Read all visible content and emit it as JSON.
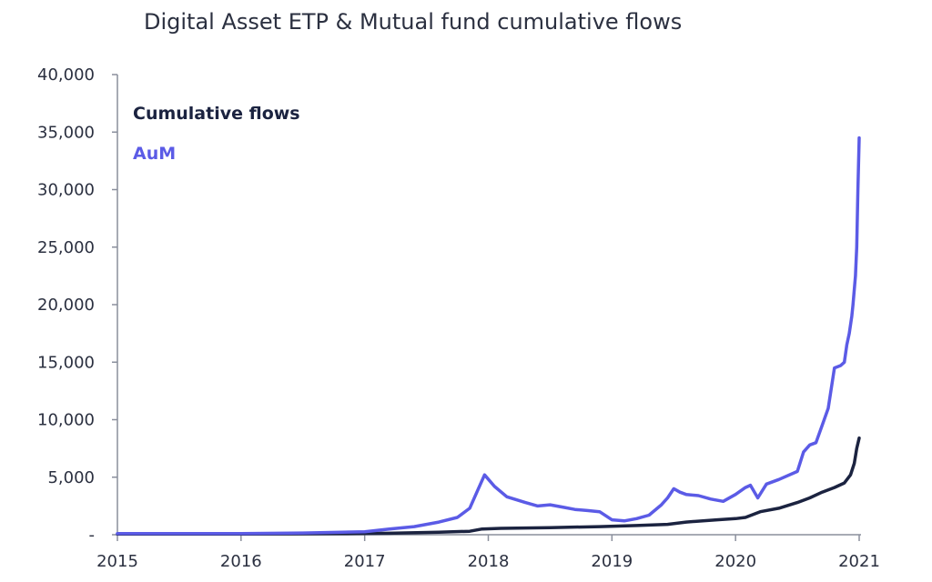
{
  "chart_data": {
    "type": "line",
    "title": "Digital Asset ETP & Mutual fund cumulative flows",
    "xlabel": "",
    "ylabel": "",
    "xlim": [
      2015,
      2021
    ],
    "ylim": [
      0,
      40000
    ],
    "x_ticks": [
      2015,
      2016,
      2017,
      2018,
      2019,
      2020,
      2021
    ],
    "x_tick_labels": [
      "2015",
      "2016",
      "2017",
      "2018",
      "2019",
      "2020",
      "2021"
    ],
    "y_ticks": [
      0,
      5000,
      10000,
      15000,
      20000,
      25000,
      30000,
      35000,
      40000
    ],
    "y_tick_labels": [
      "-",
      "5,000",
      "10,000",
      "15,000",
      "20,000",
      "25,000",
      "30,000",
      "35,000",
      "40,000"
    ],
    "grid": false,
    "legend_position": "top-left",
    "colors": {
      "cumulative_flows": "#1b2340",
      "aum": "#5b5be6",
      "axis": "#8a8f9c",
      "text": "#2b3040"
    },
    "series": [
      {
        "name": "Cumulative flows",
        "x": [
          2015.0,
          2016.0,
          2016.8,
          2017.2,
          2017.6,
          2017.85,
          2017.95,
          2018.1,
          2018.5,
          2018.9,
          2019.2,
          2019.45,
          2019.6,
          2019.85,
          2020.0,
          2020.08,
          2020.2,
          2020.35,
          2020.5,
          2020.6,
          2020.7,
          2020.8,
          2020.88,
          2020.93,
          2020.96,
          2020.98,
          2021.0
        ],
        "values": [
          60,
          60,
          90,
          130,
          220,
          300,
          500,
          550,
          620,
          700,
          800,
          900,
          1100,
          1300,
          1400,
          1500,
          2000,
          2300,
          2800,
          3200,
          3700,
          4100,
          4500,
          5200,
          6200,
          7500,
          8400
        ]
      },
      {
        "name": "AuM",
        "x": [
          2015.0,
          2016.0,
          2016.5,
          2017.0,
          2017.2,
          2017.4,
          2017.6,
          2017.75,
          2017.85,
          2017.92,
          2017.97,
          2018.05,
          2018.15,
          2018.3,
          2018.4,
          2018.5,
          2018.6,
          2018.7,
          2018.8,
          2018.9,
          2019.0,
          2019.1,
          2019.2,
          2019.3,
          2019.4,
          2019.45,
          2019.5,
          2019.55,
          2019.6,
          2019.7,
          2019.8,
          2019.9,
          2020.0,
          2020.08,
          2020.12,
          2020.18,
          2020.25,
          2020.35,
          2020.5,
          2020.55,
          2020.6,
          2020.65,
          2020.7,
          2020.75,
          2020.8,
          2020.85,
          2020.88,
          2020.9,
          2020.92,
          2020.94,
          2020.95,
          2020.97,
          2020.98,
          2020.99,
          2021.0
        ],
        "values": [
          100,
          100,
          150,
          250,
          500,
          700,
          1100,
          1500,
          2300,
          4000,
          5200,
          4200,
          3300,
          2800,
          2500,
          2600,
          2400,
          2200,
          2100,
          2000,
          1300,
          1200,
          1400,
          1700,
          2600,
          3200,
          4000,
          3700,
          3500,
          3400,
          3100,
          2900,
          3500,
          4100,
          4300,
          3200,
          4400,
          4800,
          5500,
          7200,
          7800,
          8000,
          9500,
          11000,
          14500,
          14700,
          15000,
          16500,
          17500,
          19000,
          20000,
          22500,
          25000,
          30000,
          34500
        ]
      }
    ]
  }
}
